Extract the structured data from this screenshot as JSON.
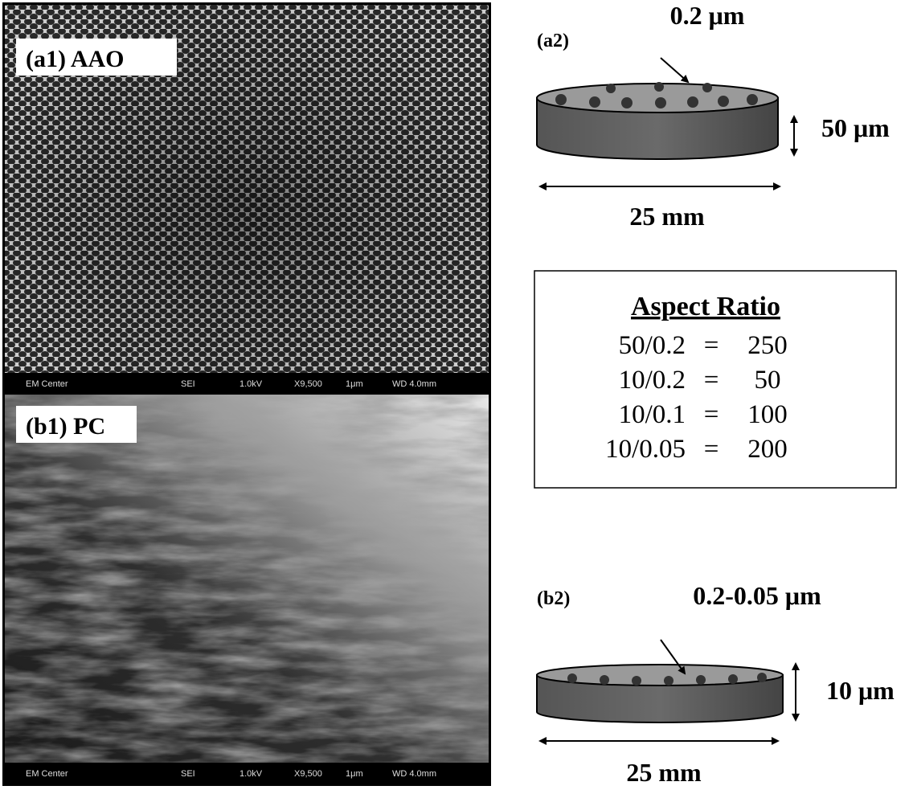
{
  "sem": [
    {
      "label": "(a1) AAO",
      "info": [
        "EM Center",
        "SEI",
        "1.0kV",
        "X9,500",
        "1μm",
        "WD 4.0mm"
      ]
    },
    {
      "label": "(b1) PC",
      "info": [
        "EM Center",
        "SEI",
        "1.0kV",
        "X9,500",
        "1μm",
        "WD 4.0mm"
      ]
    }
  ],
  "a2": {
    "label": "(a2)",
    "pore": "0.2 μm",
    "thickness": "50 μm",
    "diameter": "25 mm"
  },
  "aspect_ratio": {
    "title": "Aspect Ratio",
    "rows": [
      [
        "50/0.2",
        "=",
        "250"
      ],
      [
        "10/0.2",
        "=",
        "50"
      ],
      [
        "10/0.1",
        "=",
        "100"
      ],
      [
        "10/0.05",
        "=",
        "200"
      ]
    ]
  },
  "b2": {
    "label": "(b2)",
    "pore": "0.2-0.05 μm",
    "thickness": "10 μm",
    "diameter": "25 mm"
  }
}
